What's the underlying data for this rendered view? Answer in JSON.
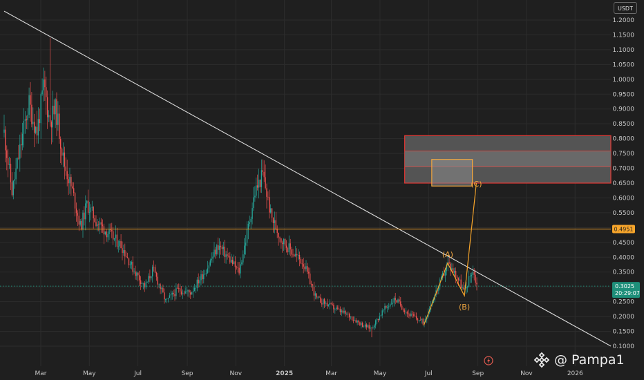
{
  "currency_button": "USDT",
  "watermark": {
    "text": "@ Pampa1",
    "logo_icon": "binance-diamond-icon"
  },
  "colors": {
    "background": "#1f1f1f",
    "grid": "#2c2c2c",
    "candle_up": "#26a69a",
    "candle_down": "#ef5350",
    "trendline": "#d9d9d9",
    "horizontal_line": "#f7a52b",
    "wave_path": "#f7a52b",
    "zone_border": "#e53935",
    "zone_fill": "#5a5a5a",
    "inner_zone_border": "#f0a640",
    "current_price_badge": "#1e8f7a",
    "level_badge": "#f7a52b"
  },
  "chart_data": {
    "type": "candlestick",
    "price_axis": {
      "ticks": [
        "1.2000",
        "1.1500",
        "1.1000",
        "1.0500",
        "1.0000",
        "0.9500",
        "0.9000",
        "0.8500",
        "0.8000",
        "0.7500",
        "0.7000",
        "0.6500",
        "0.6000",
        "0.5500",
        "0.5000",
        "0.4500",
        "0.4000",
        "0.3500",
        "0.3000",
        "0.2500",
        "0.2000",
        "0.1500",
        "0.1000"
      ],
      "range": [
        0.1,
        1.2
      ]
    },
    "time_axis": {
      "ticks": [
        "Mar",
        "May",
        "Jul",
        "Sep",
        "Nov",
        "2025",
        "Mar",
        "May",
        "Jul",
        "Sep",
        "Nov",
        "2026"
      ],
      "range": [
        "2024-01-15",
        "2026-02-15"
      ]
    },
    "price_path": [
      [
        "2024-01-15",
        0.82
      ],
      [
        "2024-01-25",
        0.62
      ],
      [
        "2024-02-05",
        0.78
      ],
      [
        "2024-02-15",
        0.92
      ],
      [
        "2024-02-25",
        0.82
      ],
      [
        "2024-03-05",
        0.98
      ],
      [
        "2024-03-12",
        0.86
      ],
      [
        "2024-03-20",
        0.9
      ],
      [
        "2024-03-30",
        0.72
      ],
      [
        "2024-04-10",
        0.62
      ],
      [
        "2024-04-20",
        0.5
      ],
      [
        "2024-04-28",
        0.58
      ],
      [
        "2024-05-10",
        0.52
      ],
      [
        "2024-05-25",
        0.48
      ],
      [
        "2024-06-10",
        0.44
      ],
      [
        "2024-06-25",
        0.36
      ],
      [
        "2024-07-10",
        0.3
      ],
      [
        "2024-07-20",
        0.36
      ],
      [
        "2024-08-05",
        0.25
      ],
      [
        "2024-08-20",
        0.29
      ],
      [
        "2024-09-05",
        0.28
      ],
      [
        "2024-09-25",
        0.36
      ],
      [
        "2024-10-10",
        0.44
      ],
      [
        "2024-10-25",
        0.39
      ],
      [
        "2024-11-05",
        0.35
      ],
      [
        "2024-11-15",
        0.48
      ],
      [
        "2024-11-25",
        0.62
      ],
      [
        "2024-12-05",
        0.68
      ],
      [
        "2024-12-15",
        0.54
      ],
      [
        "2024-12-28",
        0.46
      ],
      [
        "2025-01-10",
        0.42
      ],
      [
        "2025-01-25",
        0.38
      ],
      [
        "2025-02-10",
        0.26
      ],
      [
        "2025-02-25",
        0.24
      ],
      [
        "2025-03-10",
        0.22
      ],
      [
        "2025-03-25",
        0.2
      ],
      [
        "2025-04-10",
        0.17
      ],
      [
        "2025-04-20",
        0.16
      ],
      [
        "2025-05-05",
        0.22
      ],
      [
        "2025-05-20",
        0.26
      ],
      [
        "2025-06-05",
        0.21
      ],
      [
        "2025-06-25",
        0.18
      ],
      [
        "2025-07-05",
        0.25
      ],
      [
        "2025-07-15",
        0.31
      ],
      [
        "2025-07-25",
        0.38
      ],
      [
        "2025-08-05",
        0.34
      ],
      [
        "2025-08-15",
        0.28
      ],
      [
        "2025-08-25",
        0.36
      ],
      [
        "2025-08-31",
        0.3025
      ]
    ],
    "extremes": [
      [
        "2024-03-12",
        1.14
      ],
      [
        "2024-12-05",
        0.73
      ],
      [
        "2025-04-20",
        0.13
      ]
    ],
    "trendline": [
      [
        "2024-01-15",
        1.23
      ],
      [
        "2026-02-15",
        0.1
      ]
    ],
    "horizontal_level": {
      "value": 0.4951,
      "label": "0.4951"
    },
    "current_price": {
      "value": 0.3025,
      "label": "0.3025",
      "countdown": "20:29:07"
    },
    "target_zone": {
      "date_start": "2025-06-01",
      "price_low": 0.65,
      "price_high": 0.81,
      "dividers": [
        0.758,
        0.705
      ]
    },
    "inner_zone": {
      "date_start": "2025-07-05",
      "date_end": "2025-08-25",
      "price_low": 0.64,
      "price_high": 0.73
    },
    "waves": [
      {
        "label": "(A)",
        "date": "2025-07-25",
        "price": 0.38
      },
      {
        "label": "(B)",
        "date": "2025-08-15",
        "price": 0.27
      },
      {
        "label": "(C)",
        "date": "2025-08-30",
        "price": 0.65
      }
    ],
    "wave_start": {
      "date": "2025-06-25",
      "price": 0.17
    },
    "grid": true
  }
}
